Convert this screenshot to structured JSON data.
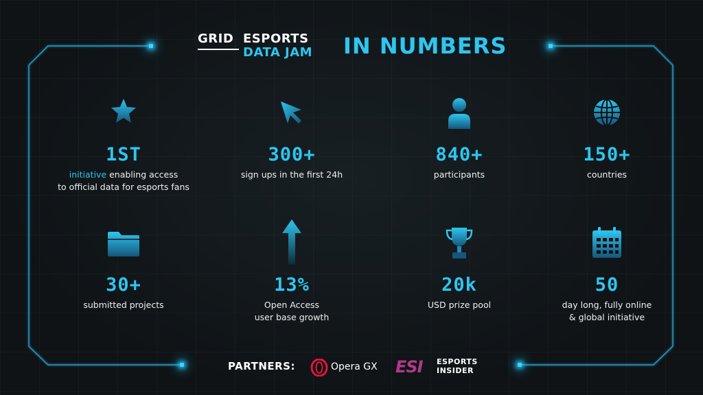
{
  "header": {
    "logo_grid": "GRID",
    "logo_esports": "ESPORTS",
    "logo_datajam": "DATA JAM",
    "title": "IN NUMBERS"
  },
  "stats": [
    {
      "icon": "star-icon",
      "value": "1ST",
      "highlight": "initiative",
      "line1_rest": " enabling access",
      "line2": "to official data for esports fans"
    },
    {
      "icon": "cursor-icon",
      "value": "300+",
      "line1": "sign ups in the first 24h"
    },
    {
      "icon": "person-icon",
      "value": "840+",
      "line1": "participants"
    },
    {
      "icon": "globe-icon",
      "value": "150+",
      "line1": "countries"
    },
    {
      "icon": "folder-icon",
      "value": "30+",
      "line1": "submitted projects"
    },
    {
      "icon": "arrow-up-icon",
      "value": "13%",
      "line1": "Open Access",
      "line2": "user base growth"
    },
    {
      "icon": "trophy-icon",
      "value": "20k",
      "line1": "USD prize pool"
    },
    {
      "icon": "calendar-icon",
      "value": "50",
      "line1": "day long, fully online",
      "line2": "& global initiative"
    }
  ],
  "partners": {
    "label": "PARTNERS:",
    "opera": "Opera GX",
    "esi_mark": "ESI",
    "esi_line1": "ESPORTS",
    "esi_line2": "INSIDER"
  },
  "colors": {
    "accent": "#2ec6f0",
    "background": "#0f1316",
    "esi_brand": "#b03a87",
    "opera_brand": "#e0173a"
  }
}
